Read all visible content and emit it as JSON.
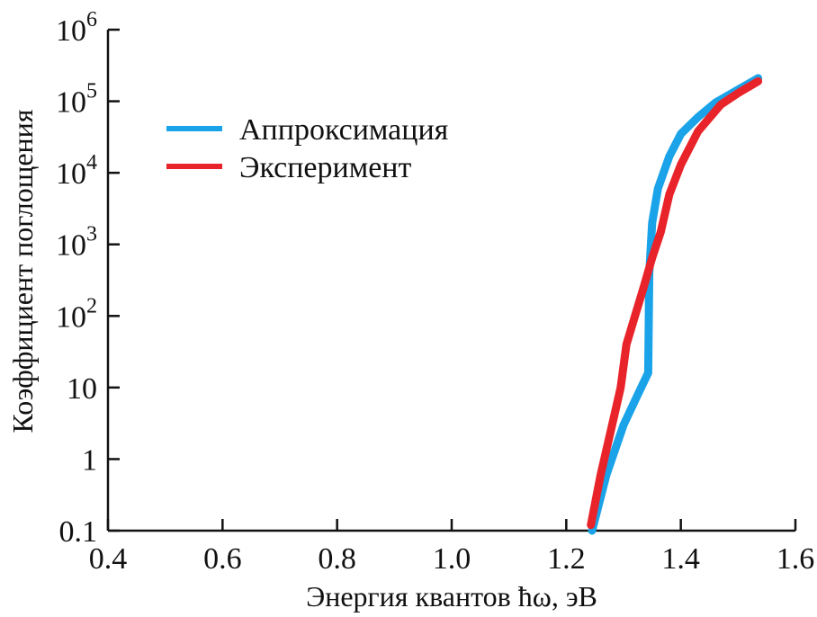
{
  "chart_data": {
    "type": "line",
    "title": "",
    "xlabel": "Энергия квантов ħω, эВ",
    "ylabel": "Коэффициент поглощения",
    "xlim": [
      0.4,
      1.6
    ],
    "ylim": [
      0.1,
      1000000
    ],
    "yscale": "log",
    "x_ticks": [
      0.4,
      0.6,
      0.8,
      1.0,
      1.2,
      1.4,
      1.6
    ],
    "x_tick_labels": [
      "0.4",
      "0.6",
      "0.8",
      "1.0",
      "1.2",
      "1.4",
      "1.6"
    ],
    "y_ticks": [
      0.1,
      1,
      10,
      100,
      1000,
      10000,
      100000,
      1000000
    ],
    "y_tick_labels": [
      {
        "base": "0.1",
        "exp": ""
      },
      {
        "base": "1",
        "exp": ""
      },
      {
        "base": "10",
        "exp": ""
      },
      {
        "base": "10",
        "exp": "2"
      },
      {
        "base": "10",
        "exp": "3"
      },
      {
        "base": "10",
        "exp": "4"
      },
      {
        "base": "10",
        "exp": "5"
      },
      {
        "base": "10",
        "exp": "6"
      }
    ],
    "grid": false,
    "legend_position": "upper-left",
    "series": [
      {
        "name": "Аппроксимация",
        "color": "#1aa3e8",
        "points": [
          [
            1.245,
            0.1
          ],
          [
            1.27,
            0.6
          ],
          [
            1.3,
            3
          ],
          [
            1.325,
            8
          ],
          [
            1.343,
            16
          ],
          [
            1.344,
            80
          ],
          [
            1.345,
            400
          ],
          [
            1.35,
            2000
          ],
          [
            1.36,
            6000
          ],
          [
            1.38,
            17000
          ],
          [
            1.4,
            35000
          ],
          [
            1.43,
            60000
          ],
          [
            1.46,
            95000
          ],
          [
            1.5,
            145000
          ],
          [
            1.535,
            210000
          ]
        ]
      },
      {
        "name": "Эксперимент",
        "color": "#e8232a",
        "points": [
          [
            1.243,
            0.12
          ],
          [
            1.26,
            0.6
          ],
          [
            1.28,
            3
          ],
          [
            1.295,
            10
          ],
          [
            1.305,
            40
          ],
          [
            1.32,
            100
          ],
          [
            1.335,
            250
          ],
          [
            1.35,
            650
          ],
          [
            1.365,
            1500
          ],
          [
            1.38,
            5000
          ],
          [
            1.4,
            13000
          ],
          [
            1.43,
            38000
          ],
          [
            1.47,
            90000
          ],
          [
            1.5,
            130000
          ],
          [
            1.535,
            190000
          ]
        ]
      }
    ]
  }
}
